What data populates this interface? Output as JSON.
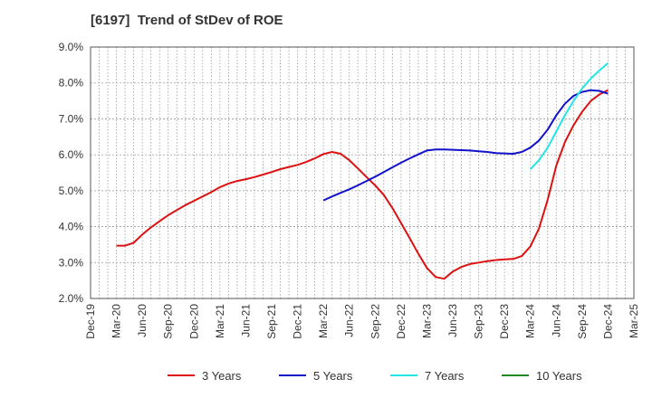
{
  "chart_data": {
    "type": "line",
    "title": "[6197]  Trend of StDev of ROE",
    "xlabel": "",
    "ylabel": "",
    "y_unit": "%",
    "ylim": [
      2.0,
      9.0
    ],
    "y_ticks": [
      "2.0%",
      "3.0%",
      "4.0%",
      "5.0%",
      "6.0%",
      "7.0%",
      "8.0%",
      "9.0%"
    ],
    "x_ticks": [
      "Dec-19",
      "Mar-20",
      "Jun-20",
      "Sep-20",
      "Dec-20",
      "Mar-21",
      "Jun-21",
      "Sep-21",
      "Dec-21",
      "Mar-22",
      "Jun-22",
      "Sep-22",
      "Dec-22",
      "Mar-23",
      "Jun-23",
      "Sep-23",
      "Dec-23",
      "Mar-24",
      "Jun-24",
      "Sep-24",
      "Dec-24",
      "Mar-25"
    ],
    "grid": true,
    "legend_position": "bottom",
    "colors": {
      "3 Years": "#dd1111",
      "5 Years": "#1111cc",
      "7 Years": "#22e6e6",
      "10 Years": "#228822"
    },
    "series": [
      {
        "name": "3 Years",
        "points": [
          [
            "Mar-20",
            3.47
          ],
          [
            "Apr-20",
            3.47
          ],
          [
            "May-20",
            3.55
          ],
          [
            "Jun-20",
            3.78
          ],
          [
            "Jul-20",
            3.98
          ],
          [
            "Aug-20",
            4.15
          ],
          [
            "Sep-20",
            4.32
          ],
          [
            "Oct-20",
            4.46
          ],
          [
            "Nov-20",
            4.6
          ],
          [
            "Dec-20",
            4.72
          ],
          [
            "Jan-21",
            4.84
          ],
          [
            "Feb-21",
            4.96
          ],
          [
            "Mar-21",
            5.1
          ],
          [
            "Apr-21",
            5.2
          ],
          [
            "May-21",
            5.27
          ],
          [
            "Jun-21",
            5.32
          ],
          [
            "Jul-21",
            5.38
          ],
          [
            "Aug-21",
            5.45
          ],
          [
            "Sep-21",
            5.52
          ],
          [
            "Oct-21",
            5.6
          ],
          [
            "Nov-21",
            5.66
          ],
          [
            "Dec-21",
            5.72
          ],
          [
            "Jan-22",
            5.8
          ],
          [
            "Feb-22",
            5.9
          ],
          [
            "Mar-22",
            6.02
          ],
          [
            "Apr-22",
            6.08
          ],
          [
            "May-22",
            6.03
          ],
          [
            "Jun-22",
            5.85
          ],
          [
            "Jul-22",
            5.62
          ],
          [
            "Aug-22",
            5.38
          ],
          [
            "Sep-22",
            5.15
          ],
          [
            "Oct-22",
            4.88
          ],
          [
            "Nov-22",
            4.52
          ],
          [
            "Dec-22",
            4.1
          ],
          [
            "Jan-23",
            3.68
          ],
          [
            "Feb-23",
            3.25
          ],
          [
            "Mar-23",
            2.85
          ],
          [
            "Apr-23",
            2.6
          ],
          [
            "May-23",
            2.55
          ],
          [
            "Jun-23",
            2.75
          ],
          [
            "Jul-23",
            2.88
          ],
          [
            "Aug-23",
            2.96
          ],
          [
            "Sep-23",
            3.0
          ],
          [
            "Oct-23",
            3.04
          ],
          [
            "Nov-23",
            3.07
          ],
          [
            "Dec-23",
            3.09
          ],
          [
            "Jan-24",
            3.1
          ],
          [
            "Feb-24",
            3.18
          ],
          [
            "Mar-24",
            3.45
          ],
          [
            "Apr-24",
            3.95
          ],
          [
            "May-24",
            4.75
          ],
          [
            "Jun-24",
            5.7
          ],
          [
            "Jul-24",
            6.35
          ],
          [
            "Aug-24",
            6.82
          ],
          [
            "Sep-24",
            7.2
          ],
          [
            "Oct-24",
            7.5
          ],
          [
            "Nov-24",
            7.68
          ],
          [
            "Dec-24",
            7.8
          ]
        ]
      },
      {
        "name": "5 Years",
        "points": [
          [
            "Mar-22",
            4.73
          ],
          [
            "Apr-22",
            4.84
          ],
          [
            "May-22",
            4.94
          ],
          [
            "Jun-22",
            5.04
          ],
          [
            "Jul-22",
            5.15
          ],
          [
            "Aug-22",
            5.27
          ],
          [
            "Sep-22",
            5.39
          ],
          [
            "Oct-22",
            5.52
          ],
          [
            "Nov-22",
            5.65
          ],
          [
            "Dec-22",
            5.78
          ],
          [
            "Jan-23",
            5.9
          ],
          [
            "Feb-23",
            6.01
          ],
          [
            "Mar-23",
            6.12
          ],
          [
            "Apr-23",
            6.15
          ],
          [
            "May-23",
            6.15
          ],
          [
            "Jun-23",
            6.14
          ],
          [
            "Jul-23",
            6.13
          ],
          [
            "Aug-23",
            6.12
          ],
          [
            "Sep-23",
            6.1
          ],
          [
            "Oct-23",
            6.08
          ],
          [
            "Nov-23",
            6.05
          ],
          [
            "Dec-23",
            6.04
          ],
          [
            "Jan-24",
            6.03
          ],
          [
            "Feb-24",
            6.08
          ],
          [
            "Mar-24",
            6.2
          ],
          [
            "Apr-24",
            6.4
          ],
          [
            "May-24",
            6.7
          ],
          [
            "Jun-24",
            7.1
          ],
          [
            "Jul-24",
            7.42
          ],
          [
            "Aug-24",
            7.64
          ],
          [
            "Sep-24",
            7.75
          ],
          [
            "Oct-24",
            7.8
          ],
          [
            "Nov-24",
            7.78
          ],
          [
            "Dec-24",
            7.7
          ]
        ]
      },
      {
        "name": "7 Years",
        "points": [
          [
            "Mar-24",
            5.6
          ],
          [
            "Apr-24",
            5.85
          ],
          [
            "May-24",
            6.2
          ],
          [
            "Jun-24",
            6.65
          ],
          [
            "Jul-24",
            7.1
          ],
          [
            "Aug-24",
            7.5
          ],
          [
            "Sep-24",
            7.85
          ],
          [
            "Oct-24",
            8.12
          ],
          [
            "Nov-24",
            8.35
          ],
          [
            "Dec-24",
            8.55
          ]
        ]
      },
      {
        "name": "10 Years",
        "points": []
      }
    ]
  }
}
